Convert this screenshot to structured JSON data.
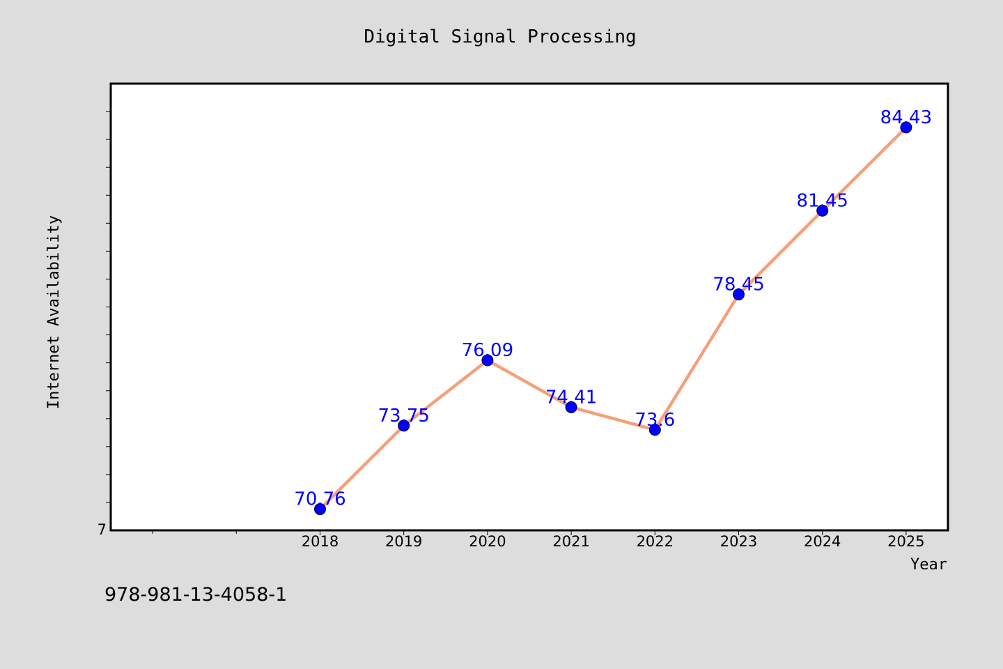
{
  "caption": "978-981-13-4058-1",
  "colors": {
    "background": "#dddddd",
    "plot_background": "#ffffff",
    "line": "#f5a07a",
    "marker": "#0000ff",
    "data_label": "#0000ff"
  },
  "chart_data": {
    "type": "line",
    "title": "Digital Signal Processing",
    "xlabel": "Year",
    "ylabel": "Internet Availability",
    "x": [
      2018,
      2019,
      2020,
      2021,
      2022,
      2023,
      2024,
      2025
    ],
    "x_tick_labels": [
      "2018",
      "2019",
      "2020",
      "2021",
      "2022",
      "2023",
      "2024",
      "2025"
    ],
    "xlim": [
      2015.5,
      2025.5
    ],
    "ylim": [
      70,
      86
    ],
    "y_tick_labels": [
      "7"
    ],
    "grid": false,
    "series": [
      {
        "values": [
          70.76,
          73.75,
          76.09,
          74.41,
          73.6,
          78.45,
          81.45,
          84.43
        ],
        "labels": [
          "70.76",
          "73.75",
          "76.09",
          "74.41",
          "73.6",
          "78.45",
          "81.45",
          "84.43"
        ]
      }
    ]
  }
}
